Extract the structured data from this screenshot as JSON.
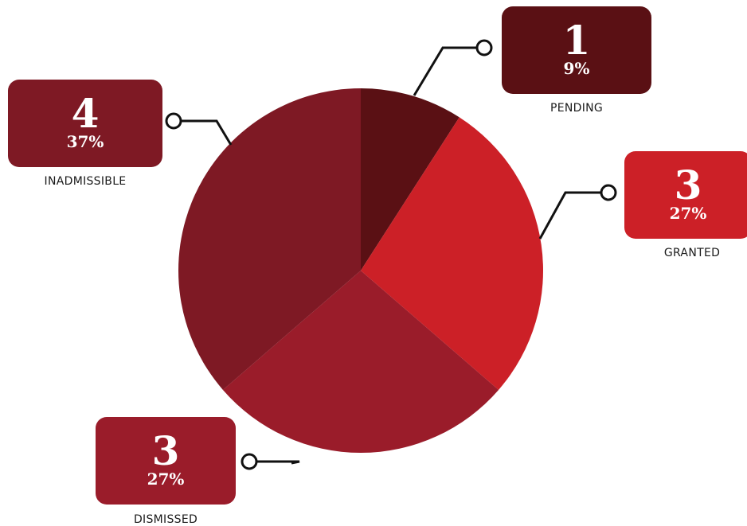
{
  "chart_data": {
    "type": "pie",
    "categories": [
      "PENDING",
      "GRANTED",
      "DISMISSED",
      "INADMISSIBLE"
    ],
    "values": [
      1,
      3,
      3,
      4
    ],
    "percent_labels": [
      "9%",
      "27%",
      "27%",
      "37%"
    ],
    "count_labels": [
      "1",
      "3",
      "3",
      "4"
    ],
    "colors": [
      "#5a1014",
      "#cc2027",
      "#9a1c2a",
      "#7e1924"
    ],
    "legend": "callouts"
  }
}
